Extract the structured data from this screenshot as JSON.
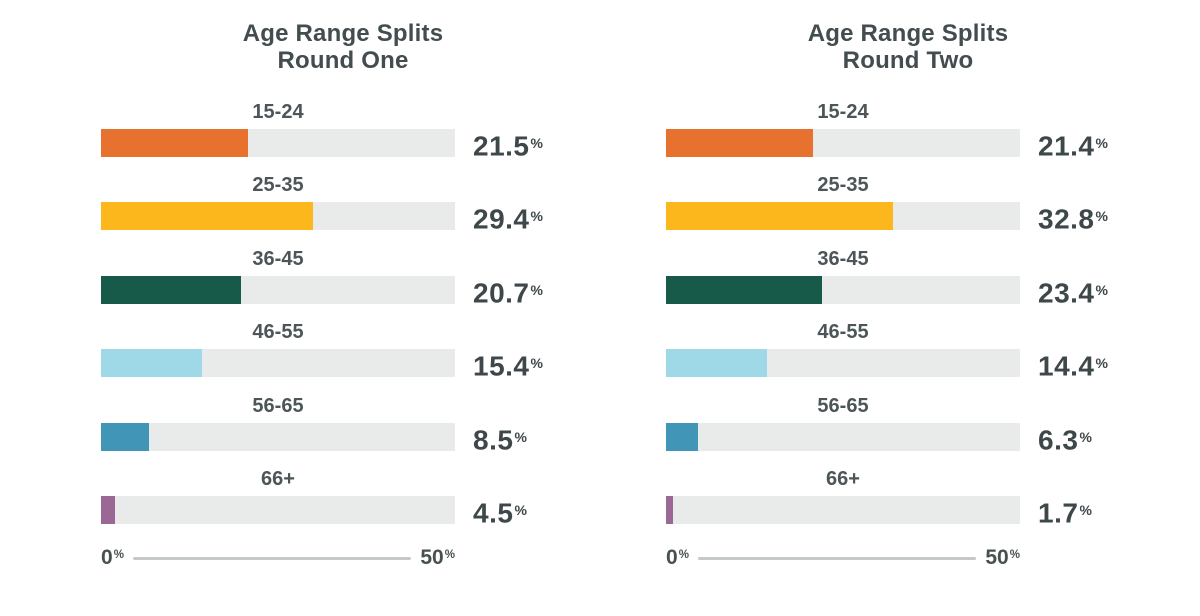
{
  "page": {
    "background": "#ffffff"
  },
  "colors": {
    "title_text": "#434c4f",
    "category_text": "#4c5557",
    "value_text": "#3e4749",
    "axis_text": "#47514f",
    "axis_line": "#c6c9c9",
    "track": "#e8ebea"
  },
  "charts": [
    {
      "title_line1": "Age Range Splits",
      "title_line2": "Round One",
      "rows": [
        {
          "label": "15-24",
          "value": "21.5",
          "unit": "%",
          "color": "#e7722f",
          "fill_pct": 41.5
        },
        {
          "label": "25-35",
          "value": "29.4",
          "unit": "%",
          "color": "#fcb71d",
          "fill_pct": 60.0
        },
        {
          "label": "36-45",
          "value": "20.7",
          "unit": "%",
          "color": "#175a49",
          "fill_pct": 39.5
        },
        {
          "label": "46-55",
          "value": "15.4",
          "unit": "%",
          "color": "#9fd8e6",
          "fill_pct": 28.5
        },
        {
          "label": "56-65",
          "value": "8.5",
          "unit": "%",
          "color": "#4196b8",
          "fill_pct": 13.5
        },
        {
          "label": "66+",
          "value": "4.5",
          "unit": "%",
          "color": "#9b6896",
          "fill_pct": 4.0
        }
      ],
      "axis": {
        "min_label": "0",
        "max_label": "50",
        "unit": "%"
      }
    },
    {
      "title_line1": "Age Range Splits",
      "title_line2": "Round Two",
      "rows": [
        {
          "label": "15-24",
          "value": "21.4",
          "unit": "%",
          "color": "#e7722f",
          "fill_pct": 41.5
        },
        {
          "label": "25-35",
          "value": "32.8",
          "unit": "%",
          "color": "#fcb71d",
          "fill_pct": 64.0
        },
        {
          "label": "36-45",
          "value": "23.4",
          "unit": "%",
          "color": "#175a49",
          "fill_pct": 44.0
        },
        {
          "label": "46-55",
          "value": "14.4",
          "unit": "%",
          "color": "#9fd8e6",
          "fill_pct": 28.5
        },
        {
          "label": "56-65",
          "value": "6.3",
          "unit": "%",
          "color": "#4196b8",
          "fill_pct": 9.0
        },
        {
          "label": "66+",
          "value": "1.7",
          "unit": "%",
          "color": "#9b6896",
          "fill_pct": 2.0
        }
      ],
      "axis": {
        "min_label": "0",
        "max_label": "50",
        "unit": "%"
      }
    }
  ],
  "chart_data": [
    {
      "type": "bar",
      "orientation": "horizontal",
      "title": "Age Range Splits Round One",
      "categories": [
        "15-24",
        "25-35",
        "36-45",
        "46-55",
        "56-65",
        "66+"
      ],
      "values": [
        21.5,
        29.4,
        20.7,
        15.4,
        8.5,
        4.5
      ],
      "unit": "%",
      "xlabel": "",
      "ylabel": "",
      "xlim": [
        0,
        50
      ],
      "axis_tick_labels": [
        "0%",
        "50%"
      ],
      "grid": false,
      "legend": false,
      "bar_colors": [
        "#e7722f",
        "#fcb71d",
        "#175a49",
        "#9fd8e6",
        "#4196b8",
        "#9b6896"
      ],
      "track_color": "#e8ebea"
    },
    {
      "type": "bar",
      "orientation": "horizontal",
      "title": "Age Range Splits Round Two",
      "categories": [
        "15-24",
        "25-35",
        "36-45",
        "46-55",
        "56-65",
        "66+"
      ],
      "values": [
        21.4,
        32.8,
        23.4,
        14.4,
        6.3,
        1.7
      ],
      "unit": "%",
      "xlabel": "",
      "ylabel": "",
      "xlim": [
        0,
        50
      ],
      "axis_tick_labels": [
        "0%",
        "50%"
      ],
      "grid": false,
      "legend": false,
      "bar_colors": [
        "#e7722f",
        "#fcb71d",
        "#175a49",
        "#9fd8e6",
        "#4196b8",
        "#9b6896"
      ],
      "track_color": "#e8ebea"
    }
  ]
}
